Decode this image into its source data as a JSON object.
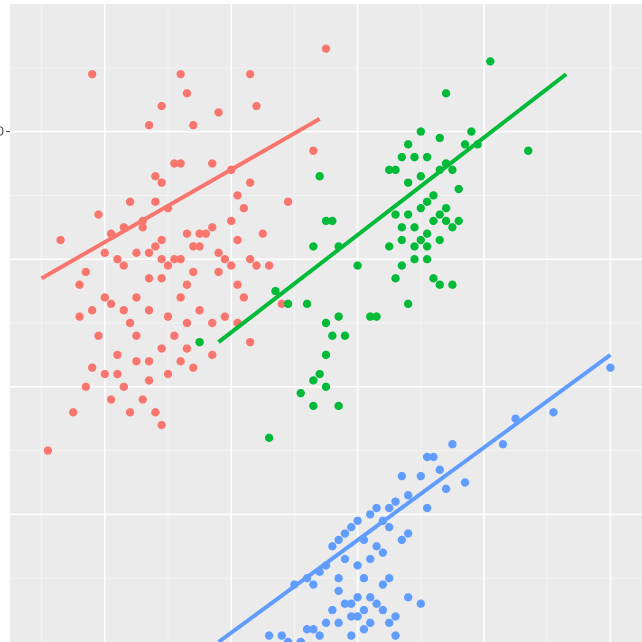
{
  "chart_data": {
    "type": "scatter",
    "title": "",
    "xlabel": "",
    "ylabel": "",
    "grid": true,
    "legend": "none",
    "y_tick_label": "0",
    "panel_color": "#ebebeb",
    "grid_color": "#ffffff",
    "xlim": [
      0,
      100
    ],
    "ylim": [
      0,
      100
    ],
    "series": [
      {
        "color": "#f8766d",
        "fit": [
          [
            5,
            57
          ],
          [
            49,
            82
          ]
        ],
        "points": [
          [
            13,
            89
          ],
          [
            27,
            89
          ],
          [
            38,
            89
          ],
          [
            28,
            86
          ],
          [
            24,
            84
          ],
          [
            39,
            84
          ],
          [
            29,
            81
          ],
          [
            22,
            81
          ],
          [
            50,
            93
          ],
          [
            33,
            83
          ],
          [
            48,
            77
          ],
          [
            35,
            74
          ],
          [
            32,
            75
          ],
          [
            23,
            73
          ],
          [
            26,
            75
          ],
          [
            24,
            72
          ],
          [
            27,
            75
          ],
          [
            38,
            72
          ],
          [
            23,
            69
          ],
          [
            36,
            70
          ],
          [
            19,
            69
          ],
          [
            14,
            67
          ],
          [
            18,
            65
          ],
          [
            21,
            66
          ],
          [
            16,
            64
          ],
          [
            15,
            61
          ],
          [
            8,
            63
          ],
          [
            25,
            68
          ],
          [
            44,
            69
          ],
          [
            37,
            68
          ],
          [
            35,
            66
          ],
          [
            32,
            65
          ],
          [
            40,
            64
          ],
          [
            31,
            64
          ],
          [
            28,
            64
          ],
          [
            30,
            64
          ],
          [
            24,
            63
          ],
          [
            23,
            62
          ],
          [
            22,
            61
          ],
          [
            20,
            61
          ],
          [
            21,
            65
          ],
          [
            29,
            62
          ],
          [
            30,
            62
          ],
          [
            33,
            61
          ],
          [
            27,
            60
          ],
          [
            26,
            60
          ],
          [
            25,
            59
          ],
          [
            24,
            60
          ],
          [
            34,
            60
          ],
          [
            36,
            63
          ],
          [
            38,
            60
          ],
          [
            39,
            59
          ],
          [
            35,
            59
          ],
          [
            41,
            59
          ],
          [
            18,
            59
          ],
          [
            17,
            60
          ],
          [
            12,
            58
          ],
          [
            11,
            56
          ],
          [
            22,
            57
          ],
          [
            24,
            57
          ],
          [
            28,
            56
          ],
          [
            27,
            54
          ],
          [
            36,
            56
          ],
          [
            33,
            58
          ],
          [
            29,
            58
          ],
          [
            20,
            54
          ],
          [
            15,
            54
          ],
          [
            16,
            53
          ],
          [
            13,
            52
          ],
          [
            18,
            52
          ],
          [
            30,
            52
          ],
          [
            34,
            51
          ],
          [
            43,
            53
          ],
          [
            37,
            54
          ],
          [
            25,
            51
          ],
          [
            22,
            52
          ],
          [
            19,
            50
          ],
          [
            28,
            50
          ],
          [
            32,
            50
          ],
          [
            26,
            48
          ],
          [
            14,
            48
          ],
          [
            11,
            51
          ],
          [
            20,
            48
          ],
          [
            36,
            50
          ],
          [
            38,
            47
          ],
          [
            30,
            47
          ],
          [
            24,
            46
          ],
          [
            17,
            45
          ],
          [
            20,
            44
          ],
          [
            27,
            44
          ],
          [
            29,
            43
          ],
          [
            15,
            42
          ],
          [
            12,
            40
          ],
          [
            18,
            40
          ],
          [
            22,
            41
          ],
          [
            16,
            38
          ],
          [
            21,
            38
          ],
          [
            19,
            36
          ],
          [
            23,
            36
          ],
          [
            24,
            34
          ],
          [
            10,
            36
          ],
          [
            25,
            42
          ],
          [
            22,
            44
          ],
          [
            17,
            42
          ],
          [
            13,
            43
          ],
          [
            28,
            46
          ],
          [
            32,
            45
          ],
          [
            6,
            30
          ]
        ]
      },
      {
        "color": "#00ba38",
        "fit": [
          [
            33,
            47
          ],
          [
            88,
            89
          ]
        ],
        "points": [
          [
            76,
            91
          ],
          [
            69,
            86
          ],
          [
            68,
            79
          ],
          [
            73,
            80
          ],
          [
            65,
            80
          ],
          [
            72,
            78
          ],
          [
            63,
            78
          ],
          [
            82,
            77
          ],
          [
            66,
            76
          ],
          [
            64,
            76
          ],
          [
            62,
            76
          ],
          [
            74,
            78
          ],
          [
            69,
            75
          ],
          [
            61,
            74
          ],
          [
            68,
            74
          ],
          [
            65,
            73
          ],
          [
            70,
            74
          ],
          [
            63,
            72
          ],
          [
            71,
            71
          ],
          [
            60,
            74
          ],
          [
            49,
            73
          ],
          [
            67,
            70
          ],
          [
            66,
            69
          ],
          [
            65,
            68
          ],
          [
            69,
            68
          ],
          [
            63,
            67
          ],
          [
            61,
            67
          ],
          [
            67,
            66
          ],
          [
            68,
            67
          ],
          [
            69,
            66
          ],
          [
            71,
            66
          ],
          [
            70,
            65
          ],
          [
            64,
            65
          ],
          [
            62,
            65
          ],
          [
            66,
            64
          ],
          [
            50,
            66
          ],
          [
            51,
            66
          ],
          [
            48,
            62
          ],
          [
            52,
            62
          ],
          [
            68,
            63
          ],
          [
            62,
            63
          ],
          [
            65,
            63
          ],
          [
            60,
            62
          ],
          [
            64,
            62
          ],
          [
            66,
            62
          ],
          [
            64,
            60
          ],
          [
            66,
            60
          ],
          [
            55,
            59
          ],
          [
            62,
            59
          ],
          [
            61,
            57
          ],
          [
            67,
            57
          ],
          [
            70,
            56
          ],
          [
            42,
            55
          ],
          [
            44,
            53
          ],
          [
            68,
            56
          ],
          [
            47,
            53
          ],
          [
            63,
            53
          ],
          [
            52,
            51
          ],
          [
            57,
            51
          ],
          [
            58,
            51
          ],
          [
            50,
            50
          ],
          [
            51,
            48
          ],
          [
            53,
            48
          ],
          [
            50,
            45
          ],
          [
            49,
            42
          ],
          [
            48,
            41
          ],
          [
            50,
            40
          ],
          [
            52,
            37
          ],
          [
            46,
            39
          ],
          [
            48,
            37
          ],
          [
            41,
            32
          ],
          [
            30,
            47
          ]
        ]
      },
      {
        "color": "#619cff",
        "fit": [
          [
            33,
            0
          ],
          [
            95,
            45
          ]
        ],
        "points": [
          [
            95,
            43
          ],
          [
            86,
            36
          ],
          [
            80,
            35
          ],
          [
            78,
            31
          ],
          [
            70,
            31
          ],
          [
            67,
            29
          ],
          [
            66,
            29
          ],
          [
            68,
            27
          ],
          [
            65,
            26
          ],
          [
            62,
            26
          ],
          [
            72,
            25
          ],
          [
            69,
            24
          ],
          [
            63,
            23
          ],
          [
            61,
            22
          ],
          [
            60,
            21
          ],
          [
            66,
            21
          ],
          [
            58,
            21
          ],
          [
            57,
            20
          ],
          [
            59,
            19
          ],
          [
            55,
            19
          ],
          [
            60,
            18
          ],
          [
            63,
            17
          ],
          [
            62,
            16
          ],
          [
            54,
            18
          ],
          [
            53,
            17
          ],
          [
            56,
            16
          ],
          [
            52,
            16
          ],
          [
            51,
            15
          ],
          [
            58,
            15
          ],
          [
            59,
            14
          ],
          [
            57,
            13
          ],
          [
            53,
            13
          ],
          [
            55,
            12
          ],
          [
            50,
            12
          ],
          [
            49,
            11
          ],
          [
            52,
            10
          ],
          [
            47,
            10
          ],
          [
            56,
            10
          ],
          [
            60,
            10
          ],
          [
            48,
            9
          ],
          [
            45,
            9
          ],
          [
            59,
            9
          ],
          [
            52,
            8
          ],
          [
            55,
            7
          ],
          [
            57,
            7
          ],
          [
            54,
            6
          ],
          [
            53,
            6
          ],
          [
            58,
            6
          ],
          [
            56,
            5
          ],
          [
            51,
            5
          ],
          [
            59,
            5
          ],
          [
            55,
            4
          ],
          [
            54,
            4
          ],
          [
            61,
            4
          ],
          [
            52,
            3
          ],
          [
            50,
            3
          ],
          [
            57,
            3
          ],
          [
            56,
            2
          ],
          [
            48,
            2
          ],
          [
            47,
            2
          ],
          [
            61,
            1
          ],
          [
            49,
            1
          ],
          [
            54,
            1
          ],
          [
            43,
            1
          ],
          [
            41,
            1
          ],
          [
            44,
            0
          ],
          [
            46,
            0
          ],
          [
            65,
            6
          ],
          [
            63,
            7
          ],
          [
            60,
            3
          ]
        ]
      }
    ]
  }
}
